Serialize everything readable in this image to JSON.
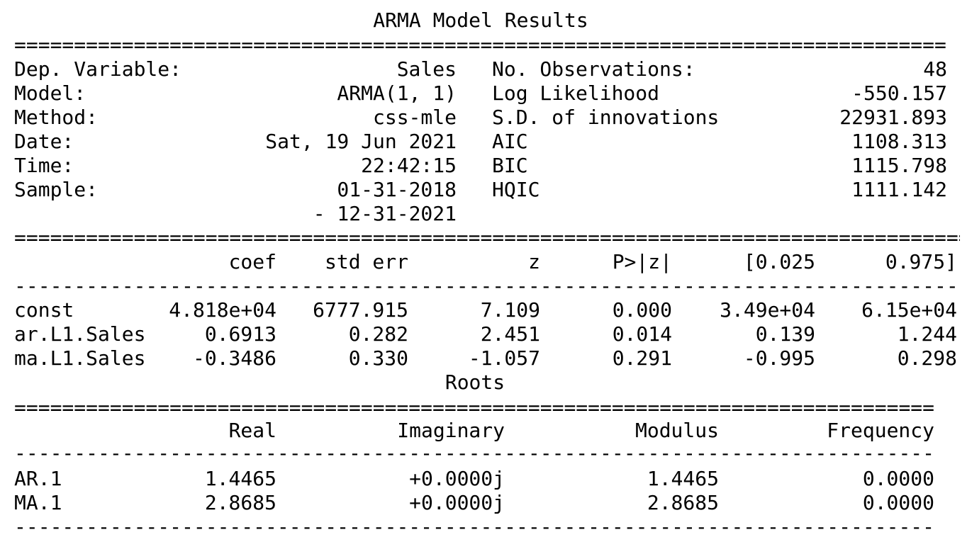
{
  "title": "ARMA Model Results",
  "summary": {
    "left": [
      {
        "label": "Dep. Variable:",
        "value": "Sales"
      },
      {
        "label": "Model:",
        "value": "ARMA(1, 1)"
      },
      {
        "label": "Method:",
        "value": "css-mle"
      },
      {
        "label": "Date:",
        "value": "Sat, 19 Jun 2021"
      },
      {
        "label": "Time:",
        "value": "22:42:15"
      },
      {
        "label": "Sample:",
        "value": "01-31-2018"
      },
      {
        "label": "",
        "value": "- 12-31-2021"
      }
    ],
    "right": [
      {
        "label": "No. Observations:",
        "value": "48"
      },
      {
        "label": "Log Likelihood",
        "value": "-550.157"
      },
      {
        "label": "S.D. of innovations",
        "value": "22931.893"
      },
      {
        "label": "AIC",
        "value": "1108.313"
      },
      {
        "label": "BIC",
        "value": "1115.798"
      },
      {
        "label": "HQIC",
        "value": "1111.142"
      }
    ]
  },
  "coef_table": {
    "headers": [
      "coef",
      "std err",
      "z",
      "P>|z|",
      "[0.025",
      "0.975]"
    ],
    "rows": [
      {
        "name": "const",
        "values": [
          "4.818e+04",
          "6777.915",
          "7.109",
          "0.000",
          "3.49e+04",
          "6.15e+04"
        ]
      },
      {
        "name": "ar.L1.Sales",
        "values": [
          "0.6913",
          "0.282",
          "2.451",
          "0.014",
          "0.139",
          "1.244"
        ]
      },
      {
        "name": "ma.L1.Sales",
        "values": [
          "-0.3486",
          "0.330",
          "-1.057",
          "0.291",
          "-0.995",
          "0.298"
        ]
      }
    ]
  },
  "roots": {
    "title": "Roots",
    "headers": [
      "Real",
      "Imaginary",
      "Modulus",
      "Frequency"
    ],
    "rows": [
      {
        "name": "AR.1",
        "values": [
          "1.4465",
          "+0.0000j",
          "1.4465",
          "0.0000"
        ]
      },
      {
        "name": "MA.1",
        "values": [
          "2.8685",
          "+0.0000j",
          "2.8685",
          "0.0000"
        ]
      }
    ]
  }
}
